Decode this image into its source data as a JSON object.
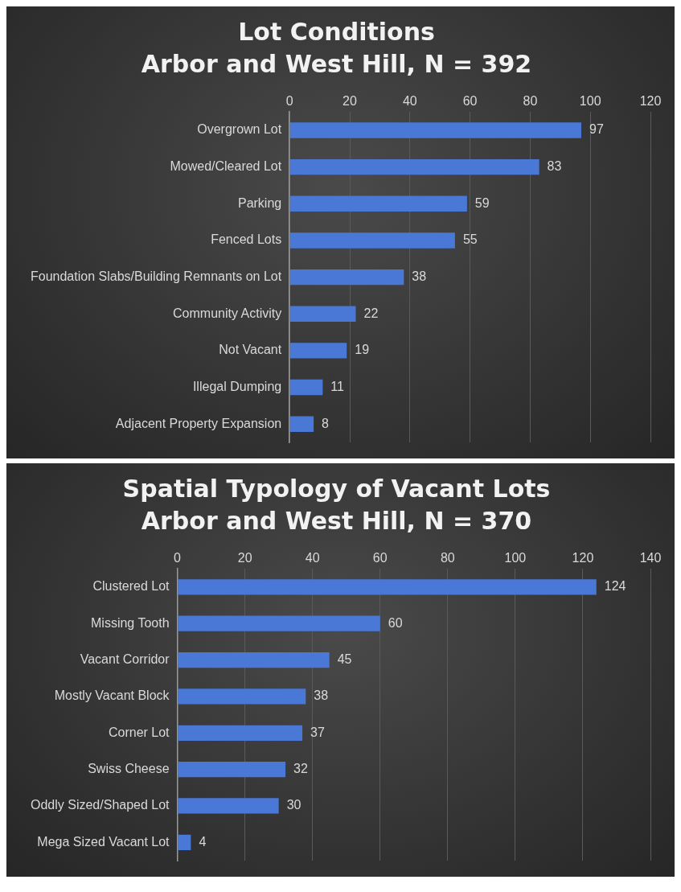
{
  "chart_data": [
    {
      "type": "bar",
      "orientation": "horizontal",
      "title": "Lot Conditions",
      "subtitle": "Arbor and West Hill, N = 392",
      "categories": [
        "Overgrown Lot",
        "Mowed/Cleared Lot",
        "Parking",
        "Fenced Lots",
        "Foundation Slabs/Building Remnants on Lot",
        "Community Activity",
        "Not Vacant",
        "Illegal Dumping",
        "Adjacent Property Expansion"
      ],
      "values": [
        97,
        83,
        59,
        55,
        38,
        22,
        19,
        11,
        8
      ],
      "color": "#4a78d6",
      "xlim": [
        0,
        120
      ],
      "xticks": [
        0,
        20,
        40,
        60,
        80,
        100,
        120
      ],
      "grid": "x",
      "data_labels": true
    },
    {
      "type": "bar",
      "orientation": "horizontal",
      "title": "Spatial Typology of Vacant Lots",
      "subtitle": "Arbor and West Hill, N = 370",
      "categories": [
        "Clustered Lot",
        "Missing Tooth",
        "Vacant Corridor",
        "Mostly Vacant Block",
        "Corner Lot",
        "Swiss Cheese",
        "Oddly Sized/Shaped Lot",
        "Mega Sized Vacant Lot"
      ],
      "values": [
        124,
        60,
        45,
        38,
        37,
        32,
        30,
        4
      ],
      "color": "#4a78d6",
      "xlim": [
        0,
        140
      ],
      "xticks": [
        0,
        20,
        40,
        60,
        80,
        100,
        120,
        140
      ],
      "grid": "x",
      "data_labels": true
    }
  ]
}
